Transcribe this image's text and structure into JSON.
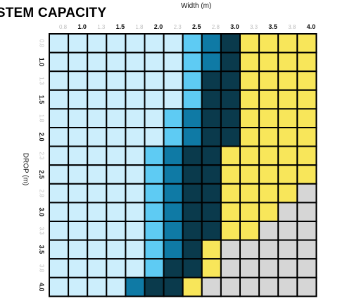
{
  "chart_data": {
    "type": "heatmap",
    "title": "YSTEM CAPACITY",
    "xlabel": "Width (m)",
    "ylabel": "DROP (m)",
    "x_ticks": [
      "0.8",
      "1.0",
      "1.3",
      "1.5",
      "1.8",
      "2.0",
      "2.3",
      "2.5",
      "2.8",
      "3.0",
      "3.3",
      "3.5",
      "3.8",
      "4.0"
    ],
    "y_ticks": [
      "0.8",
      "1.0",
      "1.3",
      "1.5",
      "1.8",
      "2.0",
      "2.3",
      "2.5",
      "2.8",
      "3.0",
      "3.3",
      "3.5",
      "3.8",
      "4.0"
    ],
    "major_ticks": [
      "1.0",
      "1.5",
      "2.0",
      "2.5",
      "3.0",
      "3.5",
      "4.0"
    ],
    "grid": true,
    "legend": "none",
    "colors": {
      "A": "#cceefc",
      "B": "#5ecbf3",
      "C": "#0f7aa5",
      "D": "#0a3a4c",
      "E": "#f8e65a",
      "F": "#d6d6d6"
    },
    "rows": [
      "AAAAAAABCDEEEE",
      "AAAAAAABCDEEEE",
      "AAAAAAABDDEEEE",
      "AAAAAAABDDEEEE",
      "AAAAAABCDDEEEE",
      "AAAAAABCDDEEEE",
      "AAAAABCDDEEEEE",
      "AAAAABCDDEEEEE",
      "AAAAABCDDEEEEF",
      "AAAAABCDDEEEFF",
      "AAAAABCDDEEFFF",
      "AAAAABCDEFFFFF",
      "AAAAABDDEFFFFF",
      "AAAACDDEFFFFFF"
    ]
  }
}
